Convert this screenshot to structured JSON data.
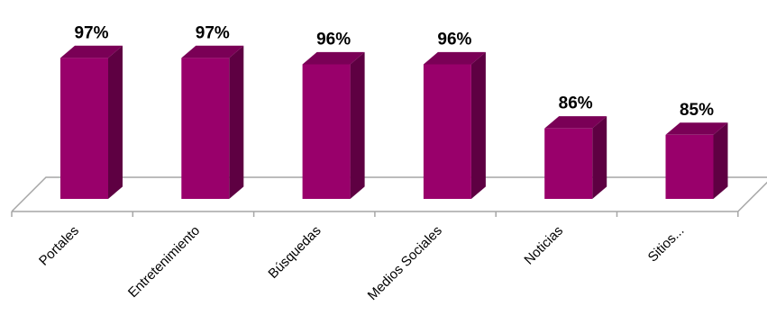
{
  "chart_data": {
    "type": "bar",
    "title": "",
    "xlabel": "",
    "ylabel": "",
    "categories": [
      "Portales",
      "Entretenimiento",
      "Búsquedas",
      "Medios Sociales",
      "Noticias",
      "Sitios..."
    ],
    "values": [
      97,
      97,
      96,
      96,
      86,
      85
    ],
    "value_labels": [
      "97%",
      "97%",
      "96%",
      "96%",
      "86%",
      "85%"
    ],
    "unit": "%",
    "ylim": [
      75,
      100
    ],
    "three_d": true,
    "grid": false,
    "legend": "none",
    "colors": {
      "bar_front": "#99006b",
      "bar_side": "#5e0042",
      "bar_top": "#7a0056",
      "floor_line": "#a6a6a6"
    }
  }
}
